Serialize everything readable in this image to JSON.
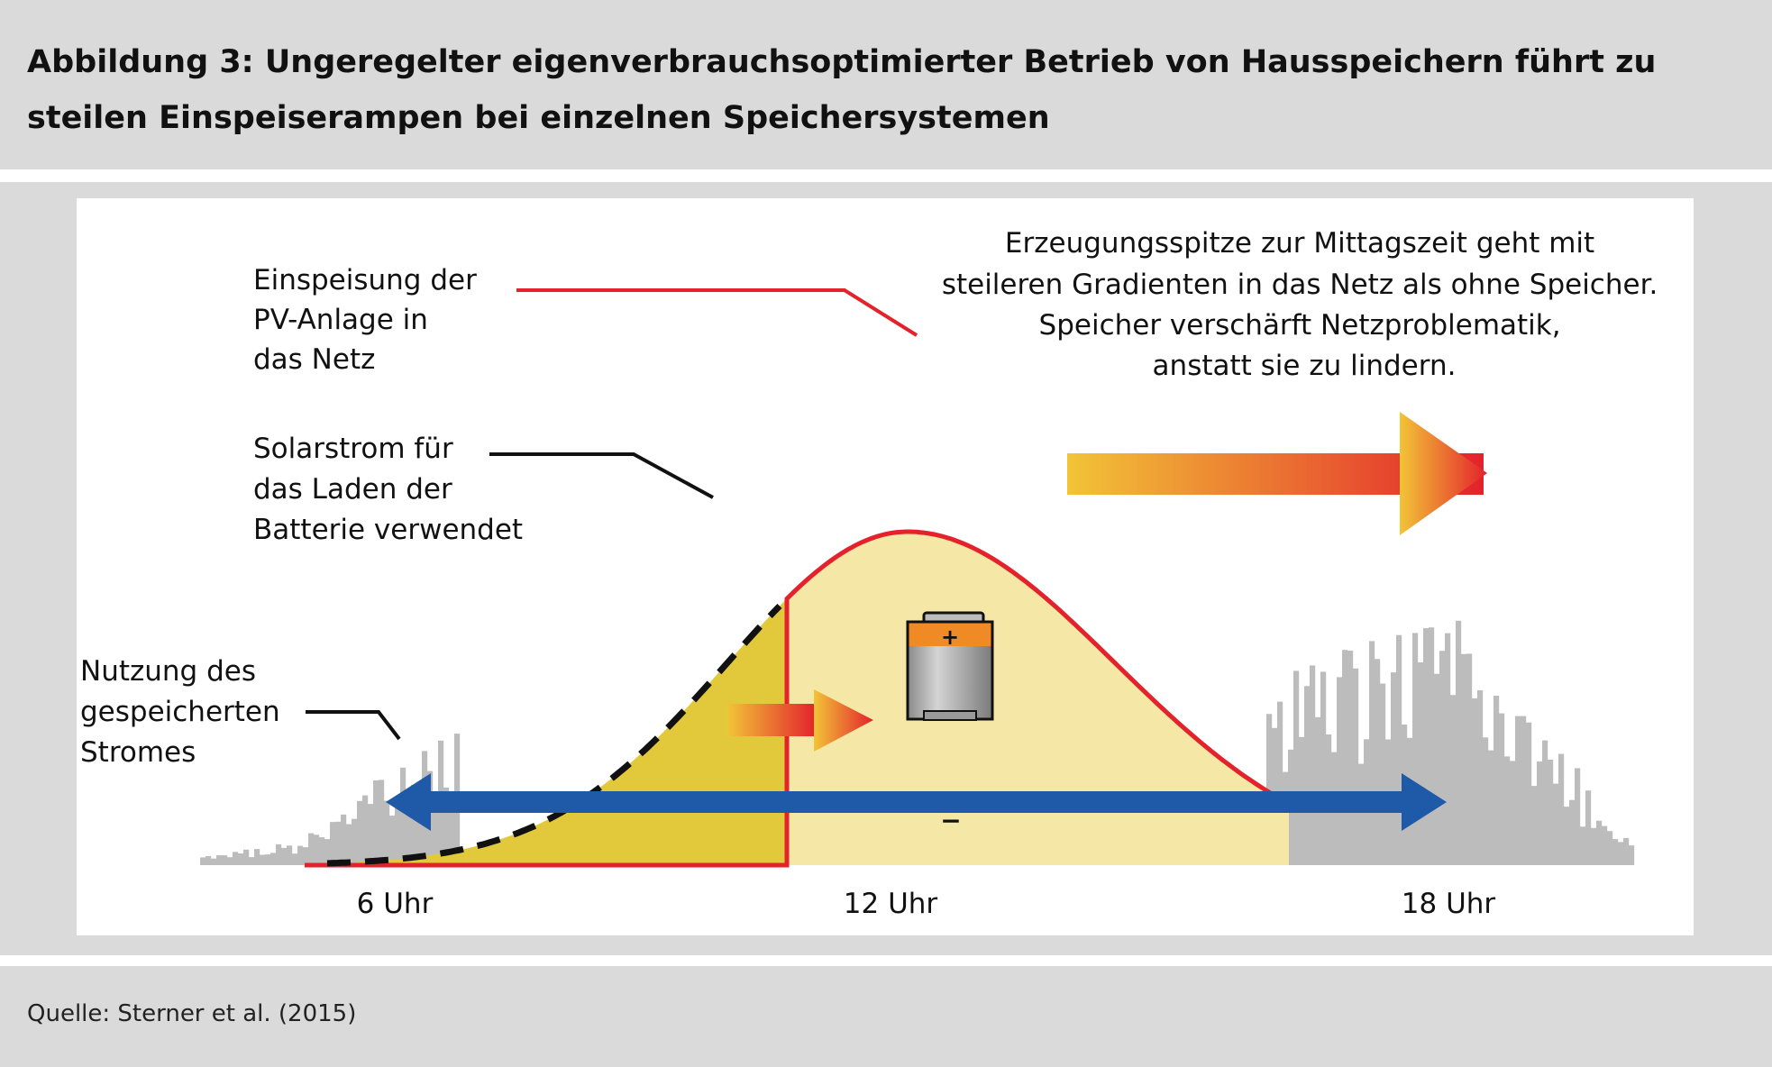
{
  "header": {
    "title": "Abbildung 3:  Ungeregelter eigenverbrauchsoptimierter Betrieb von Hausspeichern führt zu steilen Einspeiserampen bei einzelnen Speichersystemen"
  },
  "diagram": {
    "labels": {
      "feed_in": [
        "Einspeisung der",
        "PV-Anlage in",
        "das Netz"
      ],
      "battery_charging": [
        "Solarstrom für",
        "das Laden der",
        "Batterie verwendet"
      ],
      "stored_usage": [
        "Nutzung des",
        "gespeicherten",
        "Stromes"
      ],
      "peak_note": [
        "Erzeugungsspitze zur Mittagszeit geht mit",
        "steileren Gradienten in das Netz als ohne Speicher.",
        "Speicher verschärft Netzproblematik,",
        "anstatt sie zu lindern."
      ]
    },
    "time_labels": [
      "6 Uhr",
      "12 Uhr",
      "18 Uhr"
    ],
    "colors": {
      "pv_curve": "#e3222c",
      "battery_area": "#e2c93b",
      "feed_in_area": "#f5e7a6",
      "consumption": "#bcbcbc",
      "storage_arrow": "#1f5aa8",
      "arrow_gradient_start": "#f2c437",
      "arrow_gradient_end": "#e3222c",
      "battery_cap": "#f08a24"
    },
    "icons": [
      "battery-icon"
    ]
  },
  "footer": {
    "source": "Quelle: Sterner et al. (2015)"
  }
}
